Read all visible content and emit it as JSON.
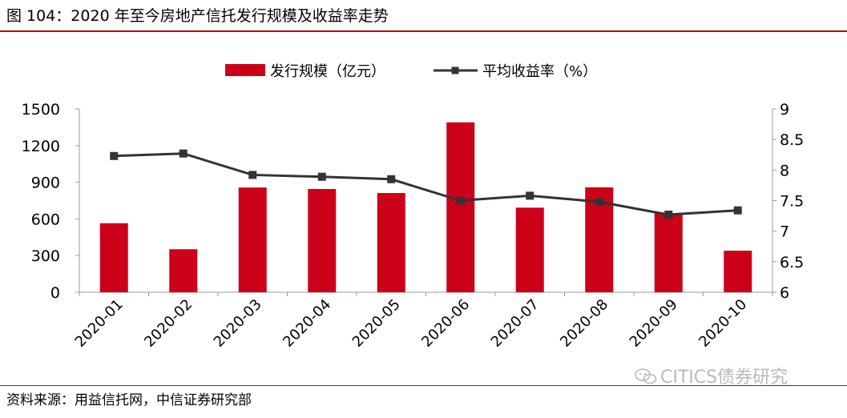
{
  "title": "图 104：2020 年至今房地产信托发行规模及收益率走势",
  "source": "资料来源：用益信托网，中信证券研究部",
  "watermark": "CITICS债券研究",
  "colors": {
    "bar": "#cc0018",
    "line": "#333333",
    "rule": "#c00000",
    "axis": "#999999"
  },
  "chart_data": {
    "type": "bar+line",
    "categories": [
      "2020-01",
      "2020-02",
      "2020-03",
      "2020-04",
      "2020-05",
      "2020-06",
      "2020-07",
      "2020-08",
      "2020-09",
      "2020-10"
    ],
    "series": [
      {
        "name": "发行规模（亿元）",
        "type": "bar",
        "axis": "left",
        "values": [
          565,
          352,
          857,
          845,
          812,
          1390,
          692,
          858,
          645,
          340
        ]
      },
      {
        "name": "平均收益率（%）",
        "type": "line",
        "axis": "right",
        "marker": "square",
        "values": [
          8.23,
          8.27,
          7.92,
          7.89,
          7.85,
          7.5,
          7.58,
          7.48,
          7.27,
          7.34
        ]
      }
    ],
    "left_axis": {
      "ylim": [
        0,
        1500
      ],
      "ticks": [
        "0",
        "300",
        "600",
        "900",
        "1200",
        "1500"
      ]
    },
    "right_axis": {
      "ylim": [
        6,
        9
      ],
      "ticks": [
        "6",
        "6.5",
        "7",
        "7.5",
        "8",
        "8.5",
        "9"
      ]
    },
    "legend_position": "top-center",
    "grid": false
  }
}
